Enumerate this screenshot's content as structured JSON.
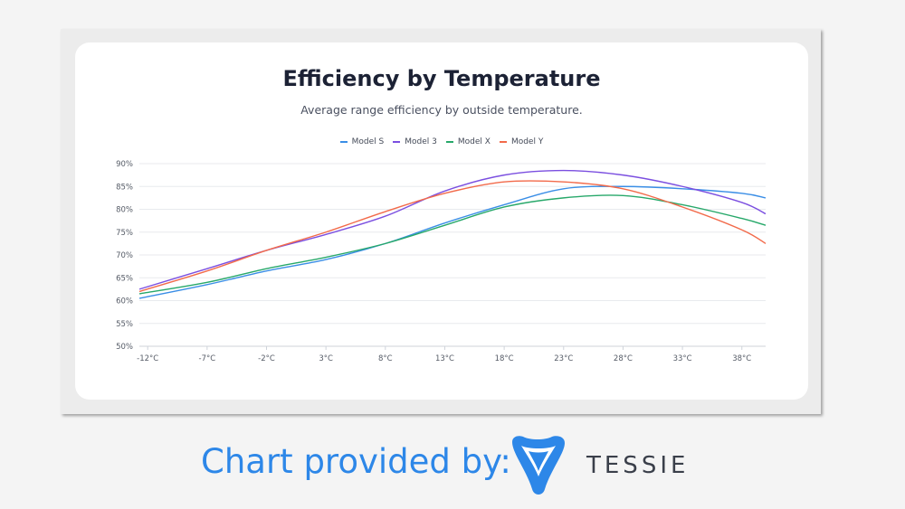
{
  "chart_data": {
    "type": "line",
    "title": "Efficiency by Temperature",
    "subtitle": "Average range efficiency by outside temperature.",
    "x_tick_labels": [
      "-12°C",
      "-7°C",
      "-2°C",
      "3°C",
      "8°C",
      "13°C",
      "18°C",
      "23°C",
      "28°C",
      "33°C",
      "38°C"
    ],
    "y_tick_labels": [
      "50%",
      "55%",
      "60%",
      "65%",
      "70%",
      "75%",
      "80%",
      "85%",
      "90%"
    ],
    "x": [
      -12,
      -7,
      -2,
      3,
      8,
      13,
      18,
      23,
      28,
      33,
      38,
      40
    ],
    "xlim": [
      -12.7,
      40
    ],
    "ylim": [
      50,
      90
    ],
    "grid": "horizontal",
    "legend_position": "top-center",
    "series": [
      {
        "name": "Model S",
        "color": "#3a8ee6",
        "values": [
          60.5,
          63.5,
          66.5,
          69,
          72.5,
          77,
          81,
          84.5,
          85,
          84.5,
          83.5,
          82.5
        ]
      },
      {
        "name": "Model 3",
        "color": "#7b4fe0",
        "values": [
          62.5,
          67,
          71,
          74.5,
          78.5,
          84,
          87.5,
          88.5,
          87.5,
          85,
          81.5,
          79
        ]
      },
      {
        "name": "Model X",
        "color": "#27a86a",
        "values": [
          61.5,
          64,
          67,
          69.5,
          72.5,
          76.5,
          80.5,
          82.5,
          83,
          81,
          78,
          76.5
        ]
      },
      {
        "name": "Model Y",
        "color": "#f26a4a",
        "values": [
          62,
          66.5,
          71,
          75,
          79.5,
          83.5,
          86,
          86,
          84.5,
          80.5,
          75.5,
          72.5
        ]
      }
    ]
  },
  "footer": {
    "credit_text": "Chart provided by:",
    "brand_name": "TESSIE",
    "brand_color": "#2d87e8"
  }
}
